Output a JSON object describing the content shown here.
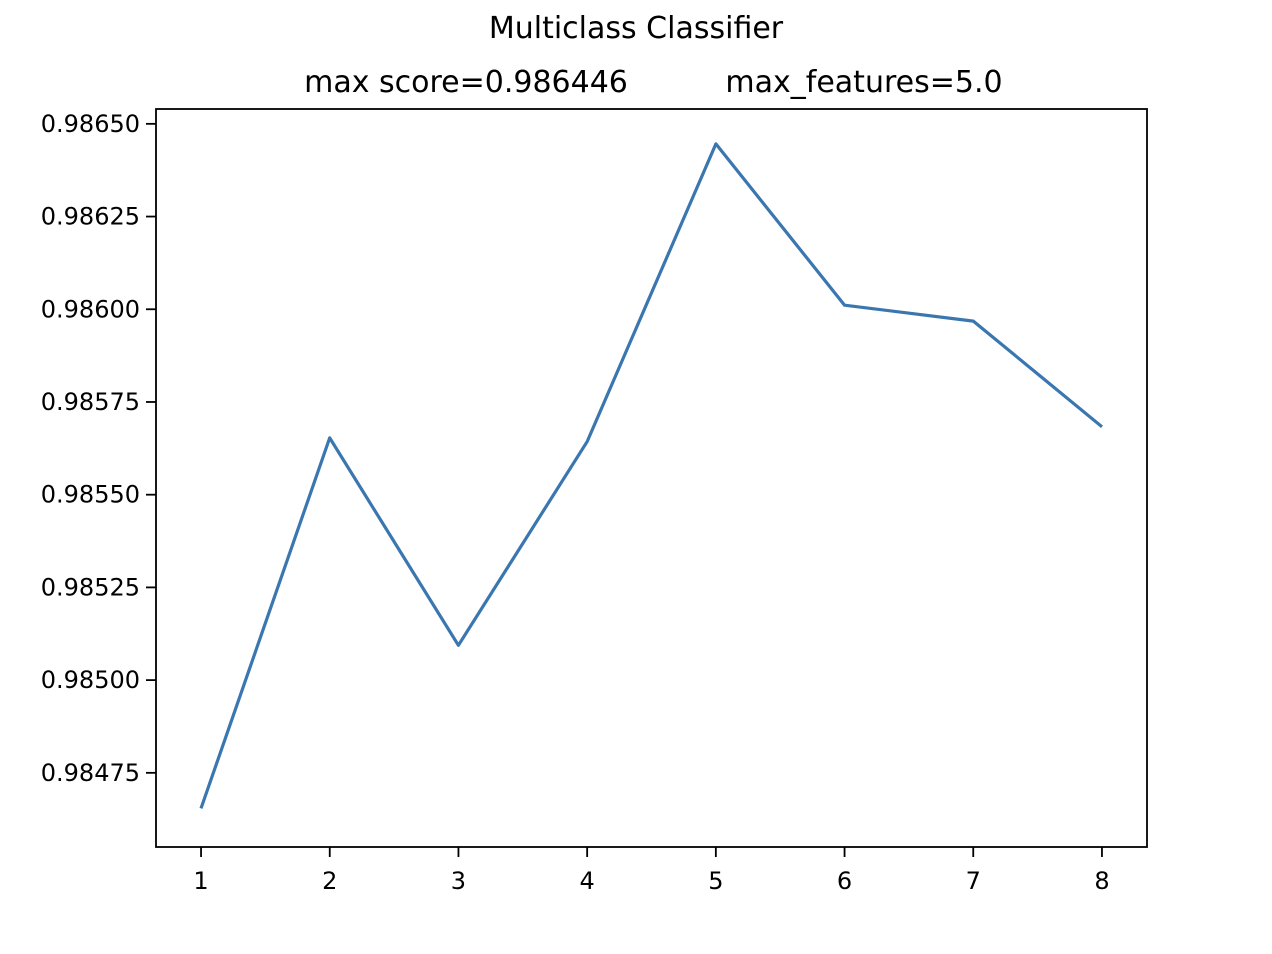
{
  "chart_data": {
    "type": "line",
    "title": "Multiclass Classifier",
    "subtitle_left": "max score=0.986446",
    "subtitle_right": "max_features=5.0",
    "xlabel": "",
    "ylabel": "",
    "x": [
      1,
      2,
      3,
      4,
      5,
      6,
      7,
      8
    ],
    "x_ticks": [
      "1",
      "2",
      "3",
      "4",
      "5",
      "6",
      "7",
      "8"
    ],
    "xlim": [
      0.65,
      8.35
    ],
    "ylim": [
      0.98455,
      0.98654
    ],
    "y_ticks": [
      0.98475,
      0.985,
      0.98525,
      0.9855,
      0.98575,
      0.986,
      0.98625,
      0.9865
    ],
    "y_tick_labels": [
      "0.98475",
      "0.98500",
      "0.98525",
      "0.98550",
      "0.98575",
      "0.98600",
      "0.98625",
      "0.98650"
    ],
    "grid": false,
    "series": [
      {
        "color": "#3a76af",
        "values": [
          0.984654,
          0.985653,
          0.985094,
          0.985643,
          0.986446,
          0.986011,
          0.985968,
          0.985683
        ]
      }
    ]
  }
}
